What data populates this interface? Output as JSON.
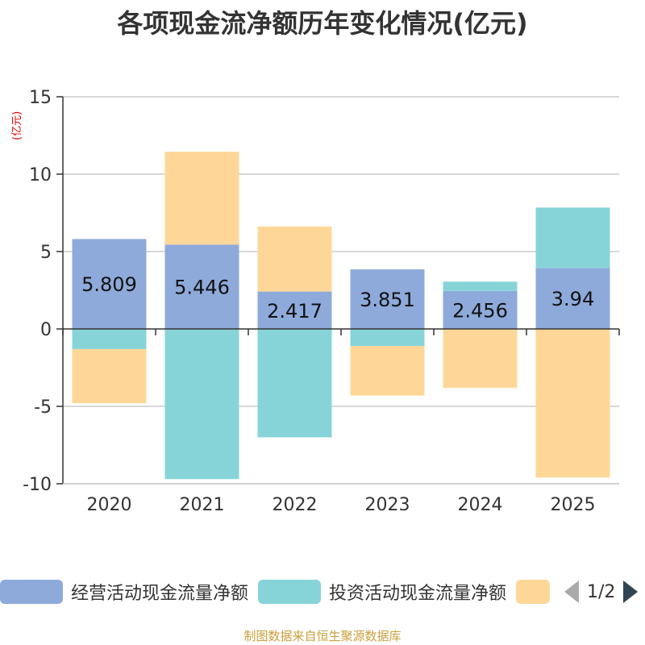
{
  "chart_data": {
    "type": "bar",
    "stacked": true,
    "title": "各项现金流净额历年变化情况(亿元)",
    "ylabel": "(亿元)",
    "categories": [
      "2020",
      "2021",
      "2022",
      "2023",
      "2024",
      "2025"
    ],
    "ylim": [
      -10,
      15
    ],
    "yticks": [
      -10,
      -5,
      0,
      5,
      10,
      15
    ],
    "series": [
      {
        "name": "经营活动现金流量净额",
        "color": "#8eaadb",
        "values": [
          5.809,
          5.446,
          2.417,
          3.851,
          2.456,
          3.94
        ],
        "labels": [
          "5.809",
          "5.446",
          "2.417",
          "3.851",
          "2.456",
          "3.94"
        ]
      },
      {
        "name": "投资活动现金流量净额",
        "color": "#86d4d8",
        "values": [
          -1.3,
          -9.7,
          -7.0,
          -1.1,
          0.6,
          3.9
        ]
      },
      {
        "name": "",
        "color": "#fed798",
        "values": [
          -3.5,
          6.0,
          4.2,
          -3.2,
          -3.8,
          -9.6
        ]
      }
    ]
  },
  "legend": {
    "items": [
      {
        "label": "经营活动现金流量净额",
        "color": "#8eaadb"
      },
      {
        "label": "投资活动现金流量净额",
        "color": "#86d4d8"
      },
      {
        "label": "",
        "color": "#fed798"
      }
    ],
    "page": "1/2"
  },
  "source": "制图数据来自恒生聚源数据库"
}
